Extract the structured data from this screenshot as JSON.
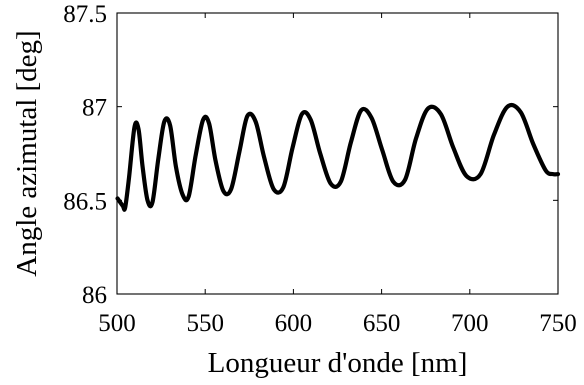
{
  "chart_data": {
    "type": "line",
    "title": "",
    "xlabel": "Longueur d'onde [nm]",
    "ylabel": "Angle azimutal  [deg]",
    "xlim": [
      500,
      750
    ],
    "ylim": [
      86,
      87.5
    ],
    "xticks": [
      500,
      550,
      600,
      650,
      700,
      750
    ],
    "yticks": [
      86,
      86.5,
      87,
      87.5
    ],
    "xtick_labels": [
      "500",
      "550",
      "600",
      "650",
      "700",
      "750"
    ],
    "ytick_labels": [
      "86",
      "86.5",
      "87",
      "87.5"
    ],
    "grid": false,
    "line_color": "#000000",
    "series": [
      {
        "x": [
          500.3,
          503.3,
          504.6,
          506.8,
          509.9,
          512.2,
          514.5,
          517.3,
          520.1,
          523.4,
          526.8,
          530.1,
          533.4,
          537.2,
          540.6,
          544.6,
          548.8,
          552.2,
          555.9,
          560.3,
          564.7,
          569.4,
          573.9,
          578.6,
          583.4,
          588.8,
          594.3,
          599.5,
          604.8,
          609.8,
          615.2,
          621.1,
          626.9,
          632.6,
          638.4,
          644.3,
          650.3,
          656.6,
          663.3,
          669.5,
          676.3,
          683.6,
          690.7,
          698.1,
          706.1,
          713.7,
          721.4,
          728.9,
          736.0,
          743.0,
          747.2,
          750.0
        ],
        "y": [
          86.51,
          86.47,
          86.46,
          86.62,
          86.89,
          86.88,
          86.68,
          86.5,
          86.49,
          86.72,
          86.92,
          86.9,
          86.68,
          86.53,
          86.52,
          86.74,
          86.93,
          86.91,
          86.71,
          86.55,
          86.56,
          86.76,
          86.95,
          86.92,
          86.73,
          86.56,
          86.57,
          86.78,
          86.96,
          86.93,
          86.75,
          86.59,
          86.6,
          86.81,
          86.98,
          86.94,
          86.77,
          86.6,
          86.61,
          86.83,
          86.99,
          86.96,
          86.78,
          86.63,
          86.64,
          86.85,
          87.0,
          86.97,
          86.8,
          86.66,
          86.64,
          86.64
        ]
      }
    ]
  }
}
